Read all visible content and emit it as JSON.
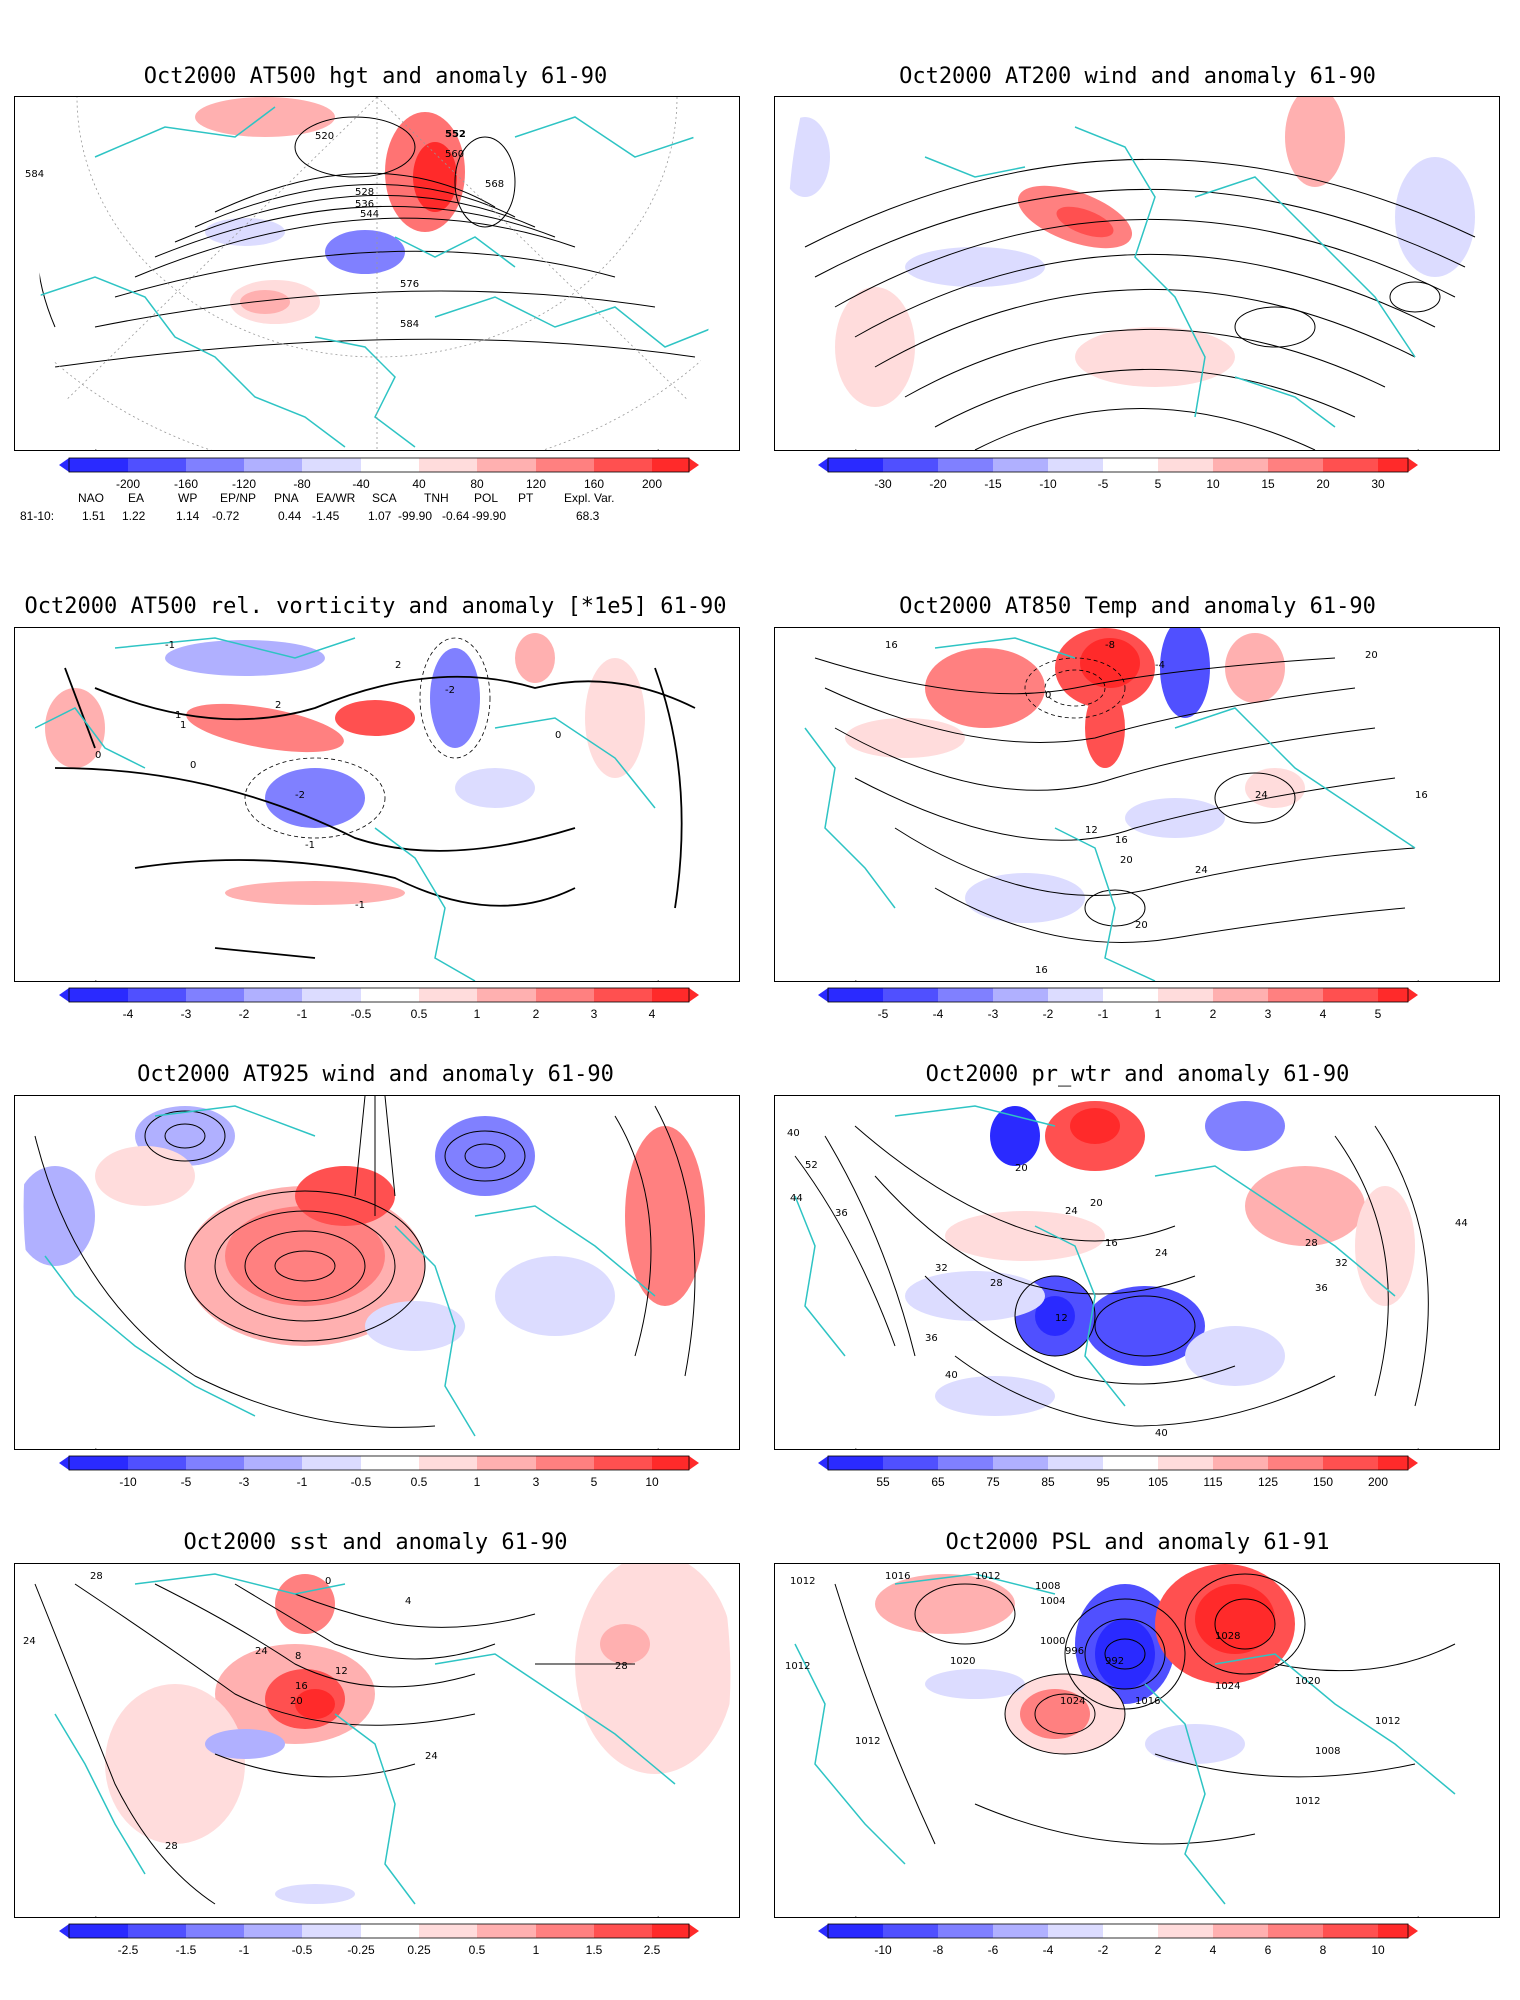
{
  "panels": [
    {
      "id": "p1",
      "title": "Oct2000 AT500 hgt and anomaly 61-90",
      "contour_labels": [
        "520",
        "552",
        "560",
        "568",
        "528",
        "536",
        "544",
        "576",
        "584",
        "584"
      ],
      "colorbar": [
        "-200",
        "-160",
        "-120",
        "-80",
        "-40",
        "40",
        "80",
        "120",
        "160",
        "200"
      ]
    },
    {
      "id": "p2",
      "title": "Oct2000 AT200 wind and anomaly 61-90",
      "contour_labels": [],
      "colorbar": [
        "-30",
        "-20",
        "-15",
        "-10",
        "-5",
        "5",
        "10",
        "15",
        "20",
        "30"
      ]
    },
    {
      "id": "p3",
      "title": "Oct2000 AT500 rel. vorticity and anomaly [*1e5] 61-90",
      "contour_labels": [
        "-2",
        "-1",
        "0",
        "1",
        "2",
        "-2",
        "2",
        "-1",
        "0",
        "1",
        "-1",
        "0"
      ],
      "colorbar": [
        "-4",
        "-3",
        "-2",
        "-1",
        "-0.5",
        "0.5",
        "1",
        "2",
        "3",
        "4"
      ]
    },
    {
      "id": "p4",
      "title": "Oct2000 AT850 Temp and anomaly 61-90",
      "contour_labels": [
        "16",
        "-8",
        "-4",
        "0",
        "20",
        "24",
        "16",
        "12",
        "16",
        "20",
        "24",
        "20",
        "16"
      ],
      "colorbar": [
        "-5",
        "-4",
        "-3",
        "-2",
        "-1",
        "1",
        "2",
        "3",
        "4",
        "5"
      ]
    },
    {
      "id": "p5",
      "title": "Oct2000 AT925 wind and anomaly 61-90",
      "contour_labels": [],
      "colorbar": [
        "-10",
        "-5",
        "-3",
        "-1",
        "-0.5",
        "0.5",
        "1",
        "3",
        "5",
        "10"
      ]
    },
    {
      "id": "p6",
      "title": "Oct2000 pr_wtr and anomaly 61-90",
      "contour_labels": [
        "40",
        "44",
        "52",
        "36",
        "20",
        "24",
        "32",
        "28",
        "36",
        "40",
        "12",
        "16",
        "20",
        "24",
        "28",
        "32",
        "36",
        "40",
        "44"
      ],
      "colorbar": [
        "55",
        "65",
        "75",
        "85",
        "95",
        "105",
        "115",
        "125",
        "150",
        "200"
      ]
    },
    {
      "id": "p7",
      "title": "Oct2000 sst and anomaly 61-90",
      "contour_labels": [
        "28",
        "24",
        "0",
        "4",
        "8",
        "12",
        "16",
        "20",
        "24",
        "28",
        "28",
        "24"
      ],
      "colorbar": [
        "-2.5",
        "-1.5",
        "-1",
        "-0.5",
        "-0.25",
        "0.25",
        "0.5",
        "1",
        "1.5",
        "2.5"
      ]
    },
    {
      "id": "p8",
      "title": "Oct2000 PSL and anomaly 61-91",
      "contour_labels": [
        "1012",
        "1016",
        "1012",
        "1008",
        "1004",
        "1000",
        "996",
        "992",
        "1020",
        "1024",
        "1028",
        "1024",
        "1020",
        "1016",
        "1012",
        "1012",
        "1008",
        "1012",
        "1012"
      ],
      "colorbar": [
        "-10",
        "-8",
        "-6",
        "-4",
        "-2",
        "2",
        "4",
        "6",
        "8",
        "10"
      ]
    }
  ],
  "colors": {
    "coast": "#2ec4c4",
    "contour": "#000000",
    "blue_scale": [
      "#2a2aff",
      "#5050ff",
      "#8080ff",
      "#b0b0ff",
      "#dcdcff"
    ],
    "red_scale": [
      "#ffdcdc",
      "#ffb0b0",
      "#ff8080",
      "#ff5050",
      "#ff2a2a"
    ]
  },
  "index_table": {
    "headers": [
      "NAO",
      "EA",
      "WP",
      "EP/NP",
      "PNA",
      "EA/WR",
      "SCA",
      "TNH",
      "POL",
      "PT",
      "Expl. Var."
    ],
    "row_label": "81-10:",
    "values": [
      "1.51",
      "1.22",
      "1.14",
      "-0.72",
      "0.44",
      "-1.45",
      "1.07",
      "-99.90",
      "-0.64",
      "-99.90",
      "68.3"
    ]
  }
}
